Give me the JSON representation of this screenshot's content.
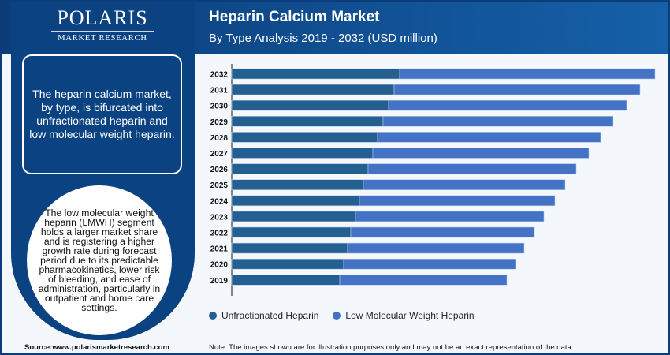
{
  "logo": {
    "name": "POLARIS",
    "sub": "MARKET RESEARCH"
  },
  "header": {
    "title": "Heparin Calcium Market",
    "subtitle": "By Type Analysis 2019 - 2032 (USD million)"
  },
  "left": {
    "box_text": "The heparin calcium market, by type, is bifurcated into unfractionated heparin and low molecular weight heparin.",
    "oval_text": "The low molecular weight heparin (LMWH) segment holds a larger market share and is registering a higher growth rate during forecast period due to its predictable pharmacokinetics, lower risk of bleeding, and ease of administration, particularly in outpatient and home care settings."
  },
  "footer": {
    "source": "Source:www.polarismarketresearch.com",
    "note": "Note: The images shown are for illustration purposes only and may not be an exact representation of the data."
  },
  "colors": {
    "unfractionated": "#245f91",
    "lmwh": "#4472c4"
  },
  "chart_data": {
    "type": "bar",
    "stacked": true,
    "orientation": "horizontal",
    "title": "Heparin Calcium Market",
    "subtitle": "By Type Analysis 2019 - 2032 (USD million)",
    "categories": [
      "2032",
      "2031",
      "2030",
      "2029",
      "2028",
      "2027",
      "2026",
      "2025",
      "2024",
      "2023",
      "2022",
      "2021",
      "2020",
      "2019"
    ],
    "series": [
      {
        "name": "Unfractionated Heparin",
        "values": [
          213,
          206,
          199,
          192,
          185,
          179,
          173,
          167,
          162,
          157,
          151,
          147,
          142,
          137
        ]
      },
      {
        "name": "Low Molecular Weight Heparin",
        "values": [
          324,
          312,
          302,
          292,
          283,
          274,
          264,
          256,
          248,
          239,
          233,
          224,
          218,
          212
        ]
      }
    ],
    "xlim": [
      0,
      550
    ],
    "legend": "bottom",
    "grid": false,
    "note": "values in relative units; no axis values shown"
  }
}
